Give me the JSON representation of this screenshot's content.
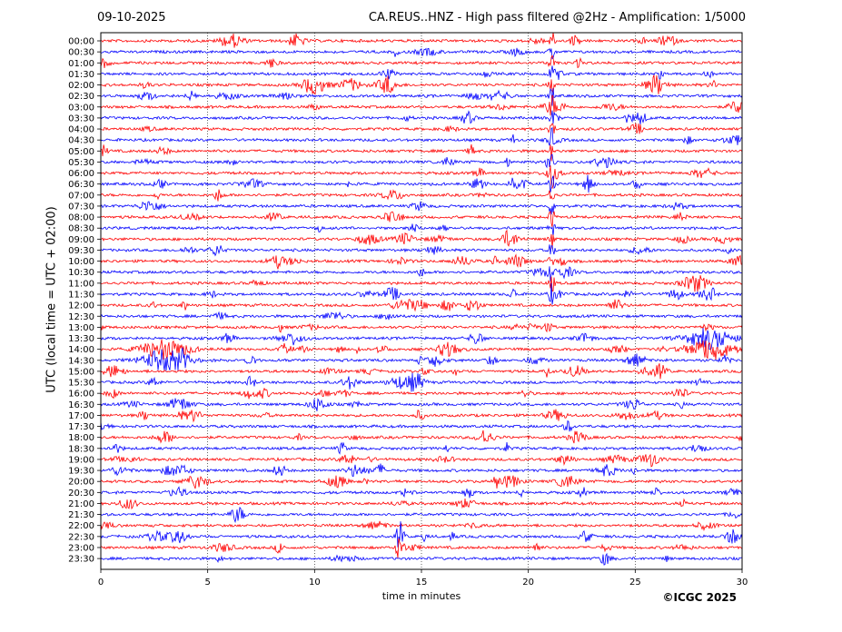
{
  "header": {
    "date": "09-10-2025",
    "title": "CA.REUS..HNZ - High pass filtered @2Hz - Amplification: 1/5000"
  },
  "footer": {
    "copyright": "©ICGC 2025"
  },
  "chart_data": {
    "type": "line",
    "title": "CA.REUS..HNZ - High pass filtered @2Hz - Amplification: 1/5000",
    "xlabel": "time in minutes",
    "ylabel": "UTC (local time = UTC + 02:00)",
    "xlim": [
      0,
      30
    ],
    "x_ticks": [
      0,
      5,
      10,
      15,
      20,
      25,
      30
    ],
    "x_tick_labels": [
      "0",
      "5",
      "10",
      "15",
      "20",
      "25",
      "30"
    ],
    "y_tick_labels": [
      "00:00",
      "00:30",
      "01:00",
      "01:30",
      "02:00",
      "02:30",
      "03:00",
      "03:30",
      "04:00",
      "04:30",
      "05:00",
      "05:30",
      "06:00",
      "06:30",
      "07:00",
      "07:30",
      "08:00",
      "08:30",
      "09:00",
      "09:30",
      "10:00",
      "10:30",
      "11:00",
      "11:30",
      "12:00",
      "12:30",
      "13:00",
      "13:30",
      "14:00",
      "14:30",
      "15:00",
      "15:30",
      "16:00",
      "16:30",
      "17:00",
      "17:30",
      "18:00",
      "18:30",
      "19:00",
      "19:30",
      "20:00",
      "20:30",
      "21:00",
      "21:30",
      "22:00",
      "22:30",
      "23:00",
      "23:30"
    ],
    "trace_colors": [
      "#ff0000",
      "#0000ff"
    ],
    "vertical_grid": "dotted",
    "events": [
      {
        "rows": [
          0,
          23
        ],
        "minute": 21.1,
        "note": "large amplitude"
      },
      {
        "rows": [
          27,
          28
        ],
        "minute": 28.5,
        "note": "noise burst"
      },
      {
        "rows": [
          28,
          29
        ],
        "minute": 3.0,
        "note": "noise burst"
      },
      {
        "rows": [
          45,
          46
        ],
        "minute": 14.0,
        "note": "spike"
      }
    ]
  }
}
